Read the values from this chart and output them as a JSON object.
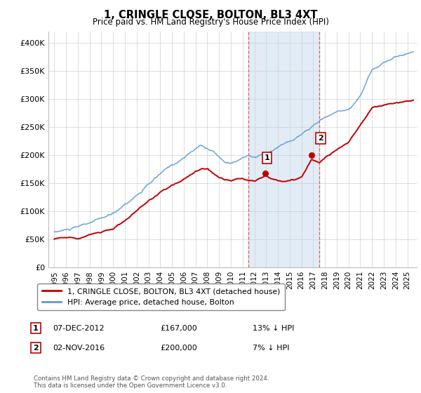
{
  "title": "1, CRINGLE CLOSE, BOLTON, BL3 4XT",
  "subtitle": "Price paid vs. HM Land Registry's House Price Index (HPI)",
  "ylabel_ticks": [
    "£0",
    "£50K",
    "£100K",
    "£150K",
    "£200K",
    "£250K",
    "£300K",
    "£350K",
    "£400K"
  ],
  "ytick_values": [
    0,
    50000,
    100000,
    150000,
    200000,
    250000,
    300000,
    350000,
    400000
  ],
  "ylim": [
    0,
    420000
  ],
  "xlim_start": 1994.5,
  "xlim_end": 2025.8,
  "hpi_color": "#5b9bd5",
  "price_color": "#c00000",
  "sale1_x": 2012.92,
  "sale1_y": 167000,
  "sale2_x": 2016.84,
  "sale2_y": 200000,
  "shade_x1": 2011.5,
  "shade_x2": 2017.5,
  "vline1_x": 2011.5,
  "vline2_x": 2017.5,
  "legend_line1": "1, CRINGLE CLOSE, BOLTON, BL3 4XT (detached house)",
  "legend_line2": "HPI: Average price, detached house, Bolton",
  "ann1_date": "07-DEC-2012",
  "ann1_price": "£167,000",
  "ann1_pct": "13% ↓ HPI",
  "ann2_date": "02-NOV-2016",
  "ann2_price": "£200,000",
  "ann2_pct": "7% ↓ HPI",
  "footnote": "Contains HM Land Registry data © Crown copyright and database right 2024.\nThis data is licensed under the Open Government Licence v3.0.",
  "background_color": "#ffffff",
  "grid_color": "#d0d0d0"
}
